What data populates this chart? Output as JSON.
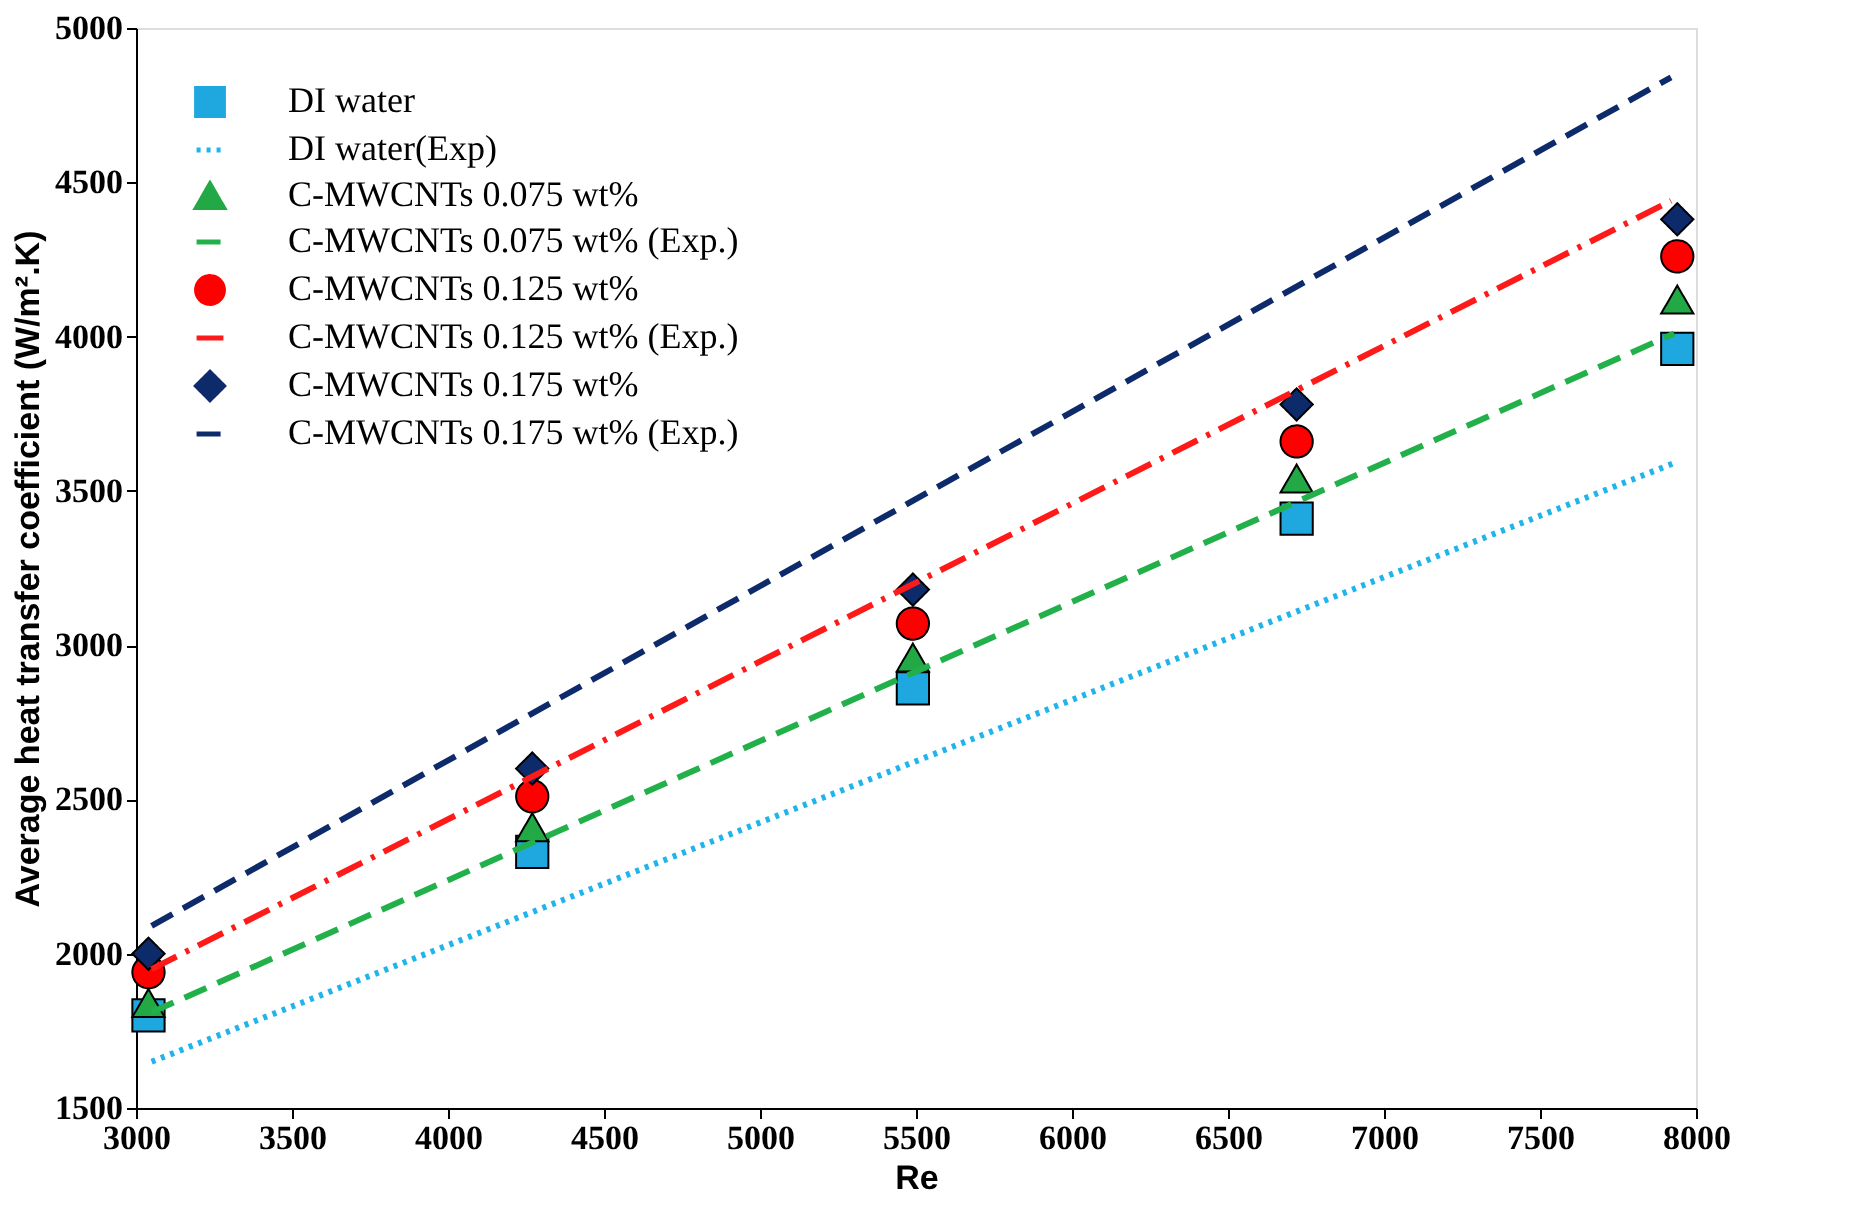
{
  "chart_data": {
    "type": "scatter",
    "xlabel": "Re",
    "ylabel": "Average heat transfer coefficient (W/m².K)",
    "xlim": [
      3000,
      8000
    ],
    "xticks": [
      3000,
      3500,
      4000,
      4500,
      5000,
      5500,
      6000,
      6500,
      7000,
      7500,
      8000
    ],
    "ylim": [
      1500,
      5000
    ],
    "yticks": [
      1500,
      2000,
      2500,
      3000,
      3500,
      4000,
      4500,
      5000
    ],
    "grid": false,
    "legend": "top left",
    "series": [
      {
        "name": "DI water",
        "marker": "square",
        "color": "#1fa8e0",
        "x": [
          3040,
          4270,
          5490,
          6720,
          7940
        ],
        "values": [
          1800,
          2330,
          2860,
          3410,
          3960
        ]
      },
      {
        "name": "DI water(Exp)",
        "type": "line",
        "line_style": "dotted",
        "color": "#1fb4ec",
        "x": [
          3050,
          7930
        ],
        "values": [
          1650,
          3590
        ]
      },
      {
        "name": "C-MWCNTs 0.075 wt%",
        "marker": "triangle",
        "color": "#22a845",
        "x": [
          3040,
          4270,
          5490,
          6720,
          7940
        ],
        "values": [
          1840,
          2410,
          2960,
          3540,
          4120
        ]
      },
      {
        "name": "C-MWCNTs 0.075 wt% (Exp.)",
        "type": "line",
        "line_style": "dashed",
        "color": "#22b04a",
        "x": [
          3050,
          7930
        ],
        "values": [
          1810,
          4010
        ]
      },
      {
        "name": "C-MWCNTs 0.125 wt%",
        "marker": "circle",
        "color": "#ff0000",
        "x": [
          3040,
          4270,
          5490,
          6720,
          7940
        ],
        "values": [
          1940,
          2510,
          3070,
          3660,
          4260
        ]
      },
      {
        "name": "C-MWCNTs 0.125 wt% (Exp.)",
        "type": "line",
        "line_style": "dashdot",
        "color": "#ff1a1a",
        "x": [
          3050,
          7920
        ],
        "values": [
          1950,
          4440
        ]
      },
      {
        "name": "C-MWCNTs 0.175 wt%",
        "marker": "diamond",
        "color": "#0d2a6b",
        "x": [
          3040,
          4270,
          5490,
          6720,
          7940
        ],
        "values": [
          2000,
          2600,
          3180,
          3780,
          4380
        ]
      },
      {
        "name": "C-MWCNTs 0.175 wt% (Exp.)",
        "type": "line",
        "line_style": "dashed",
        "color": "#0d2a6b",
        "x": [
          3050,
          7920
        ],
        "values": [
          2090,
          4840
        ]
      }
    ]
  }
}
